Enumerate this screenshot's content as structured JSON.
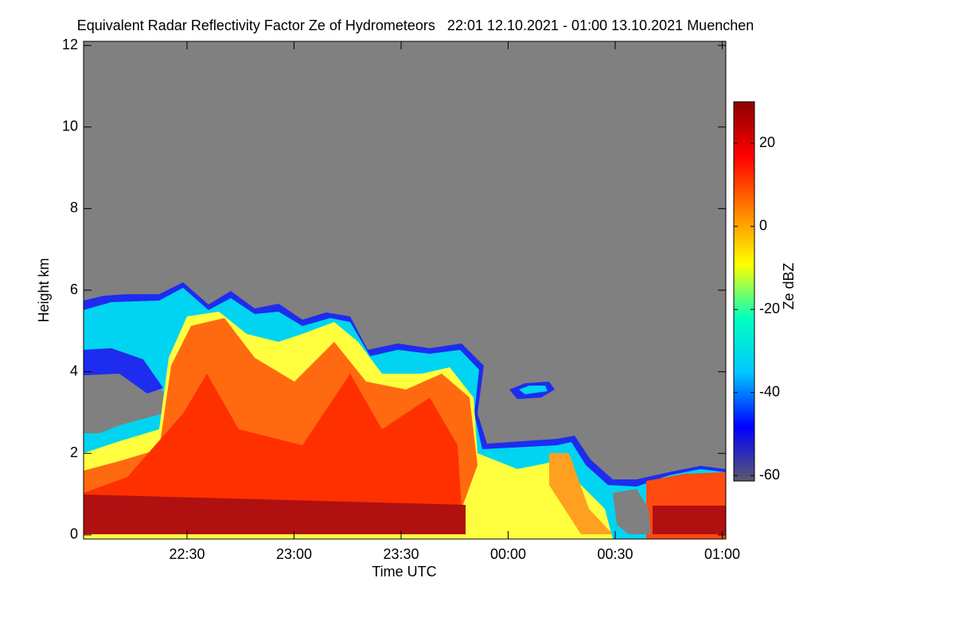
{
  "chart_data": {
    "type": "heatmap",
    "title": "Equivalent Radar Reflectivity Factor Ze of Hydrometeors   22:01 12.10.2021 - 01:00 13.10.2021 Muenchen",
    "x_label": "Time UTC",
    "y_label": "Height km",
    "colorbar_label": "Ze dBZ",
    "xlim": [
      1,
      181
    ],
    "xticks": [
      {
        "value": 30,
        "label": "22:30"
      },
      {
        "value": 60,
        "label": "23:00"
      },
      {
        "value": 90,
        "label": "23:30"
      },
      {
        "value": 120,
        "label": "00:00"
      },
      {
        "value": 150,
        "label": "00:30"
      },
      {
        "value": 180,
        "label": "01:00"
      }
    ],
    "ylim": [
      -0.1,
      12.1
    ],
    "yticks": [
      0,
      2,
      4,
      6,
      8,
      10,
      12
    ],
    "zlim": [
      -61.3,
      30
    ],
    "zticks": [
      20,
      0,
      -20,
      -40,
      -60
    ],
    "colormap": [
      "#5a5a6e",
      "#0000ff",
      "#00c8ff",
      "#00ffc0",
      "#ffff00",
      "#ff8000",
      "#ff0000",
      "#8b0000"
    ]
  }
}
